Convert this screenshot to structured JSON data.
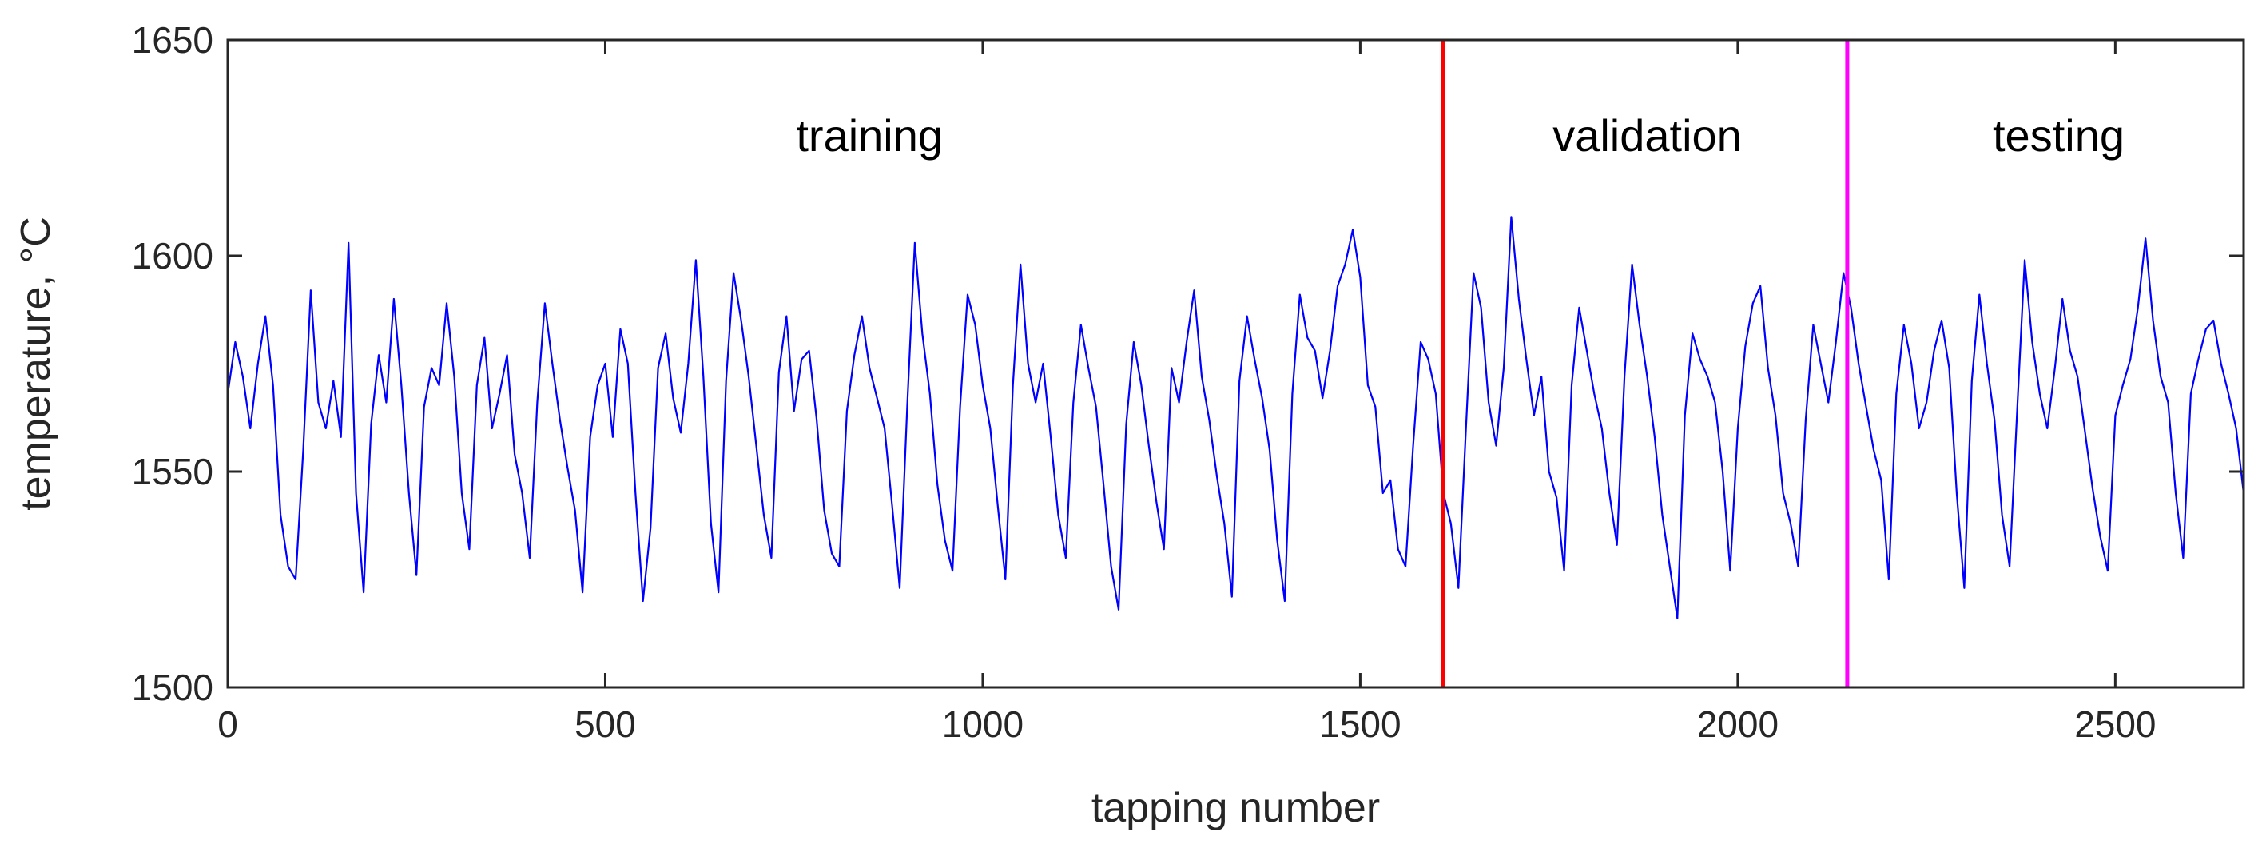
{
  "chart_data": {
    "type": "line",
    "title": "",
    "xlabel": "tapping number",
    "ylabel": "temperature, °C",
    "xlim": [
      0,
      2670
    ],
    "ylim": [
      1500,
      1650
    ],
    "xticks": [
      0,
      500,
      1000,
      1500,
      2000,
      2500
    ],
    "yticks": [
      1500,
      1550,
      1600,
      1650
    ],
    "xtick_labels": [
      "0",
      "500",
      "1000",
      "1500",
      "2000",
      "2500"
    ],
    "ytick_labels": [
      "1500",
      "1550",
      "1600",
      "1650"
    ],
    "grid": false,
    "colors": {
      "series": "#0000ff",
      "validation_split": "#ff0000",
      "testing_split": "#ff00ff",
      "axes": "#262626"
    },
    "vertical_lines": [
      {
        "x": 1610,
        "color": "#ff0000"
      },
      {
        "x": 2145,
        "color": "#ff00ff"
      }
    ],
    "region_labels": [
      {
        "text": "training",
        "x": 850,
        "y": 1628
      },
      {
        "text": "validation",
        "x": 1880,
        "y": 1628
      },
      {
        "text": "testing",
        "x": 2425,
        "y": 1628
      }
    ],
    "series": [
      {
        "x_start": 0,
        "x_step": 10,
        "values": [
          1568,
          1580,
          1572,
          1560,
          1575,
          1586,
          1570,
          1540,
          1528,
          1525,
          1555,
          1592,
          1566,
          1560,
          1571,
          1558,
          1603,
          1545,
          1522,
          1561,
          1577,
          1566,
          1590,
          1570,
          1545,
          1526,
          1565,
          1574,
          1570,
          1589,
          1572,
          1545,
          1532,
          1570,
          1581,
          1560,
          1568,
          1577,
          1554,
          1545,
          1530,
          1566,
          1589,
          1575,
          1562,
          1551,
          1541,
          1522,
          1558,
          1570,
          1575,
          1558,
          1583,
          1575,
          1545,
          1520,
          1537,
          1574,
          1582,
          1567,
          1559,
          1575,
          1599,
          1572,
          1538,
          1522,
          1571,
          1596,
          1585,
          1572,
          1556,
          1540,
          1530,
          1573,
          1586,
          1564,
          1576,
          1578,
          1562,
          1541,
          1531,
          1528,
          1564,
          1577,
          1586,
          1574,
          1567,
          1560,
          1542,
          1523,
          1565,
          1603,
          1582,
          1568,
          1547,
          1534,
          1527,
          1565,
          1591,
          1584,
          1570,
          1560,
          1542,
          1525,
          1570,
          1598,
          1575,
          1566,
          1575,
          1558,
          1540,
          1530,
          1566,
          1584,
          1574,
          1565,
          1547,
          1528,
          1518,
          1561,
          1580,
          1570,
          1556,
          1543,
          1532,
          1574,
          1566,
          1580,
          1592,
          1572,
          1562,
          1549,
          1538,
          1521,
          1571,
          1586,
          1576,
          1567,
          1555,
          1534,
          1520,
          1568,
          1591,
          1581,
          1578,
          1567,
          1578,
          1593,
          1598,
          1606,
          1595,
          1570,
          1565,
          1545,
          1548,
          1532,
          1528,
          1556,
          1580,
          1576,
          1568,
          1545,
          1538,
          1523,
          1560,
          1596,
          1588,
          1566,
          1556,
          1574,
          1609,
          1590,
          1576,
          1563,
          1572,
          1550,
          1544,
          1527,
          1570,
          1588,
          1578,
          1568,
          1560,
          1545,
          1533,
          1572,
          1598,
          1584,
          1572,
          1558,
          1540,
          1528,
          1516,
          1563,
          1582,
          1576,
          1572,
          1566,
          1550,
          1527,
          1560,
          1579,
          1589,
          1593,
          1574,
          1563,
          1545,
          1538,
          1528,
          1562,
          1584,
          1575,
          1566,
          1580,
          1596,
          1588,
          1575,
          1565,
          1555,
          1548,
          1525,
          1568,
          1584,
          1575,
          1560,
          1566,
          1578,
          1585,
          1574,
          1545,
          1523,
          1571,
          1591,
          1575,
          1562,
          1540,
          1528,
          1564,
          1599,
          1580,
          1568,
          1560,
          1574,
          1590,
          1578,
          1572,
          1559,
          1546,
          1535,
          1527,
          1563,
          1570,
          1576,
          1588,
          1604,
          1585,
          1572,
          1566,
          1545,
          1530,
          1568,
          1576,
          1583,
          1585,
          1575,
          1568,
          1560,
          1545,
          1525
        ]
      }
    ]
  }
}
